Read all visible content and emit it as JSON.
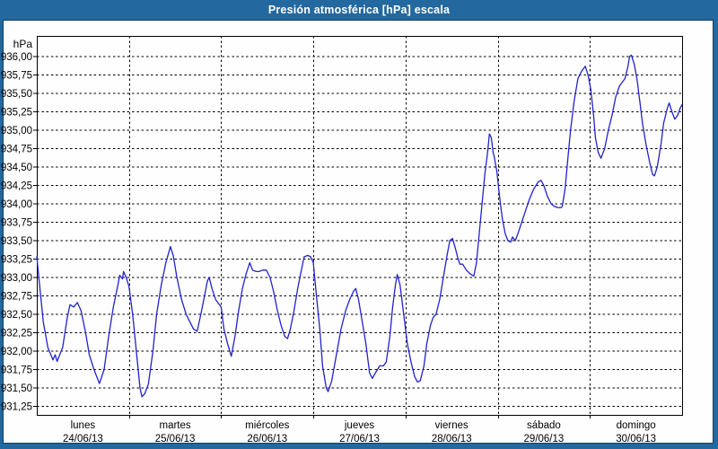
{
  "window": {
    "title": "Presión atmosférica [hPa] escala"
  },
  "colors": {
    "frame": "#23689E",
    "frame_inner_line": "#123F63",
    "background": "#FEFEFE",
    "series_line": "#2222CC",
    "grid": "#000000",
    "label_text": "#000000",
    "title_text": "#FFFFFF"
  },
  "chart_data": {
    "type": "line",
    "title": "Presión atmosférica [hPa] escala",
    "y_unit_label": "hPa",
    "y_tick_labels": [
      "936,00",
      "935,75",
      "935,50",
      "935,25",
      "935,00",
      "934,75",
      "934,50",
      "934,25",
      "934,00",
      "933,75",
      "933,50",
      "933,25",
      "933,00",
      "932,75",
      "932,50",
      "932,25",
      "932,00",
      "931,75",
      "931,50",
      "931,25"
    ],
    "y_max_tick": 936.0,
    "y_tick_step": 0.25,
    "ylim": [
      931.14,
      936.28
    ],
    "grid": true,
    "legend_position": "none",
    "x_categories": [
      {
        "name": "lunes",
        "date": "24/06/13"
      },
      {
        "name": "martes",
        "date": "25/06/13"
      },
      {
        "name": "miércoles",
        "date": "26/06/13"
      },
      {
        "name": "jueves",
        "date": "27/06/13"
      },
      {
        "name": "viernes",
        "date": "28/06/13"
      },
      {
        "name": "sábado",
        "date": "29/06/13"
      },
      {
        "name": "domingo",
        "date": "30/06/13"
      }
    ],
    "series": [
      {
        "name": "presión atmosférica",
        "color": "#2222CC",
        "x_unit": "days_from_start",
        "points": [
          [
            0,
            933.28
          ],
          [
            0.03,
            932.9
          ],
          [
            0.07,
            932.4
          ],
          [
            0.12,
            932.05
          ],
          [
            0.175,
            931.88
          ],
          [
            0.2,
            931.95
          ],
          [
            0.22,
            931.86
          ],
          [
            0.28,
            932.05
          ],
          [
            0.33,
            932.45
          ],
          [
            0.36,
            932.63
          ],
          [
            0.4,
            932.6
          ],
          [
            0.44,
            932.66
          ],
          [
            0.48,
            932.55
          ],
          [
            0.53,
            932.25
          ],
          [
            0.57,
            931.95
          ],
          [
            0.62,
            931.75
          ],
          [
            0.68,
            931.56
          ],
          [
            0.73,
            931.75
          ],
          [
            0.78,
            932.2
          ],
          [
            0.83,
            932.6
          ],
          [
            0.88,
            932.9
          ],
          [
            0.9,
            933.03
          ],
          [
            0.93,
            932.98
          ],
          [
            0.94,
            933.08
          ],
          [
            0.97,
            933.0
          ],
          [
            1.0,
            932.88
          ],
          [
            1.04,
            932.5
          ],
          [
            1.08,
            932.0
          ],
          [
            1.12,
            931.5
          ],
          [
            1.14,
            931.38
          ],
          [
            1.17,
            931.42
          ],
          [
            1.21,
            931.55
          ],
          [
            1.26,
            932.0
          ],
          [
            1.3,
            932.5
          ],
          [
            1.35,
            932.9
          ],
          [
            1.4,
            933.2
          ],
          [
            1.45,
            933.42
          ],
          [
            1.48,
            933.3
          ],
          [
            1.52,
            933.0
          ],
          [
            1.57,
            932.7
          ],
          [
            1.62,
            932.5
          ],
          [
            1.66,
            932.4
          ],
          [
            1.7,
            932.3
          ],
          [
            1.74,
            932.27
          ],
          [
            1.78,
            932.5
          ],
          [
            1.82,
            932.75
          ],
          [
            1.85,
            932.95
          ],
          [
            1.87,
            933.0
          ],
          [
            1.9,
            932.85
          ],
          [
            1.94,
            932.7
          ],
          [
            1.97,
            932.65
          ],
          [
            2.0,
            932.6
          ],
          [
            2.03,
            932.3
          ],
          [
            2.07,
            932.1
          ],
          [
            2.11,
            931.93
          ],
          [
            2.15,
            932.2
          ],
          [
            2.19,
            932.55
          ],
          [
            2.23,
            932.85
          ],
          [
            2.27,
            933.05
          ],
          [
            2.31,
            933.2
          ],
          [
            2.34,
            933.1
          ],
          [
            2.38,
            933.08
          ],
          [
            2.41,
            933.08
          ],
          [
            2.45,
            933.1
          ],
          [
            2.49,
            933.1
          ],
          [
            2.53,
            933.0
          ],
          [
            2.57,
            932.8
          ],
          [
            2.61,
            932.55
          ],
          [
            2.65,
            932.35
          ],
          [
            2.69,
            932.2
          ],
          [
            2.72,
            932.17
          ],
          [
            2.75,
            932.3
          ],
          [
            2.79,
            932.55
          ],
          [
            2.83,
            932.85
          ],
          [
            2.87,
            933.1
          ],
          [
            2.9,
            933.28
          ],
          [
            2.94,
            933.3
          ],
          [
            2.97,
            933.28
          ],
          [
            3.0,
            933.2
          ],
          [
            3.03,
            932.8
          ],
          [
            3.07,
            932.3
          ],
          [
            3.1,
            931.8
          ],
          [
            3.14,
            931.5
          ],
          [
            3.16,
            931.45
          ],
          [
            3.2,
            931.6
          ],
          [
            3.25,
            931.95
          ],
          [
            3.3,
            932.3
          ],
          [
            3.35,
            932.55
          ],
          [
            3.4,
            932.72
          ],
          [
            3.44,
            932.82
          ],
          [
            3.46,
            932.85
          ],
          [
            3.49,
            932.7
          ],
          [
            3.53,
            932.4
          ],
          [
            3.57,
            932.1
          ],
          [
            3.61,
            931.7
          ],
          [
            3.64,
            931.63
          ],
          [
            3.68,
            931.72
          ],
          [
            3.72,
            931.8
          ],
          [
            3.76,
            931.8
          ],
          [
            3.79,
            931.85
          ],
          [
            3.83,
            932.2
          ],
          [
            3.86,
            932.6
          ],
          [
            3.89,
            932.9
          ],
          [
            3.91,
            933.04
          ],
          [
            3.94,
            932.9
          ],
          [
            3.98,
            932.5
          ],
          [
            4.02,
            932.1
          ],
          [
            4.06,
            931.85
          ],
          [
            4.1,
            931.65
          ],
          [
            4.13,
            931.58
          ],
          [
            4.16,
            931.6
          ],
          [
            4.2,
            931.8
          ],
          [
            4.23,
            932.1
          ],
          [
            4.27,
            932.35
          ],
          [
            4.3,
            932.46
          ],
          [
            4.33,
            932.5
          ],
          [
            4.37,
            932.7
          ],
          [
            4.41,
            933.0
          ],
          [
            4.45,
            933.3
          ],
          [
            4.48,
            933.5
          ],
          [
            4.51,
            933.53
          ],
          [
            4.54,
            933.4
          ],
          [
            4.57,
            933.25
          ],
          [
            4.59,
            933.18
          ],
          [
            4.62,
            933.18
          ],
          [
            4.66,
            933.1
          ],
          [
            4.7,
            933.05
          ],
          [
            4.74,
            933.02
          ],
          [
            4.77,
            933.2
          ],
          [
            4.8,
            933.6
          ],
          [
            4.83,
            934.0
          ],
          [
            4.86,
            934.4
          ],
          [
            4.89,
            934.7
          ],
          [
            4.91,
            934.95
          ],
          [
            4.93,
            934.9
          ],
          [
            4.95,
            934.7
          ],
          [
            4.96,
            934.65
          ],
          [
            4.99,
            934.45
          ],
          [
            5.02,
            934.1
          ],
          [
            5.05,
            933.8
          ],
          [
            5.08,
            933.6
          ],
          [
            5.11,
            933.5
          ],
          [
            5.14,
            933.48
          ],
          [
            5.16,
            933.55
          ],
          [
            5.19,
            933.5
          ],
          [
            5.22,
            933.6
          ],
          [
            5.26,
            933.75
          ],
          [
            5.3,
            933.9
          ],
          [
            5.34,
            934.05
          ],
          [
            5.39,
            934.2
          ],
          [
            5.44,
            934.3
          ],
          [
            5.47,
            934.32
          ],
          [
            5.5,
            934.25
          ],
          [
            5.54,
            934.1
          ],
          [
            5.58,
            934.0
          ],
          [
            5.61,
            933.97
          ],
          [
            5.65,
            933.95
          ],
          [
            5.69,
            933.95
          ],
          [
            5.7,
            933.97
          ],
          [
            5.73,
            934.2
          ],
          [
            5.76,
            934.6
          ],
          [
            5.79,
            935.0
          ],
          [
            5.83,
            935.4
          ],
          [
            5.87,
            935.7
          ],
          [
            5.91,
            935.8
          ],
          [
            5.95,
            935.87
          ],
          [
            5.98,
            935.75
          ],
          [
            6.01,
            935.55
          ],
          [
            6.04,
            935.2
          ],
          [
            6.06,
            934.9
          ],
          [
            6.09,
            934.7
          ],
          [
            6.12,
            934.62
          ],
          [
            6.16,
            934.75
          ],
          [
            6.2,
            935.0
          ],
          [
            6.24,
            935.2
          ],
          [
            6.28,
            935.45
          ],
          [
            6.32,
            935.6
          ],
          [
            6.35,
            935.65
          ],
          [
            6.38,
            935.7
          ],
          [
            6.41,
            935.85
          ],
          [
            6.43,
            936.0
          ],
          [
            6.45,
            936.02
          ],
          [
            6.48,
            935.9
          ],
          [
            6.51,
            935.7
          ],
          [
            6.54,
            935.4
          ],
          [
            6.57,
            935.1
          ],
          [
            6.61,
            934.8
          ],
          [
            6.65,
            934.55
          ],
          [
            6.68,
            934.4
          ],
          [
            6.7,
            934.38
          ],
          [
            6.73,
            934.5
          ],
          [
            6.77,
            934.8
          ],
          [
            6.8,
            935.1
          ],
          [
            6.84,
            935.3
          ],
          [
            6.86,
            935.37
          ],
          [
            6.89,
            935.25
          ],
          [
            6.92,
            935.15
          ],
          [
            6.95,
            935.2
          ],
          [
            6.98,
            935.3
          ],
          [
            7.0,
            935.35
          ]
        ]
      }
    ]
  }
}
